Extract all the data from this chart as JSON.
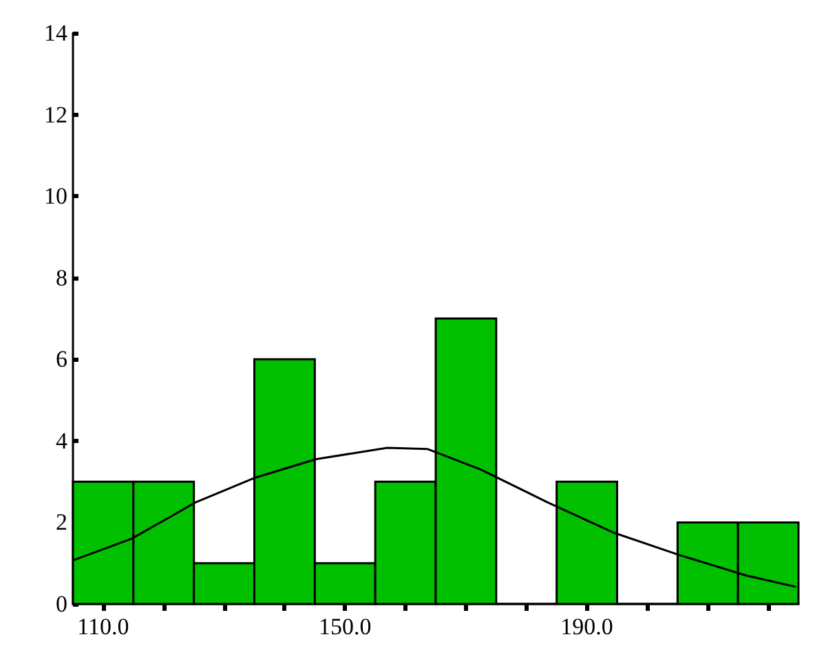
{
  "chart_data": {
    "type": "histogram",
    "bins": [
      105,
      115,
      125,
      135,
      145,
      155,
      165,
      175,
      185,
      195,
      205,
      215,
      225
    ],
    "values": [
      3,
      3,
      1,
      6,
      1,
      3,
      7,
      0,
      3,
      0,
      2,
      2
    ],
    "color": "#00c000",
    "series": [
      {
        "type": "line",
        "x": [
          105,
          114.7,
          125.4,
          135.2,
          145.2,
          157,
          163.6,
          172.4,
          183.4,
          194.4,
          205.3,
          216.3,
          224.6
        ],
        "values": [
          1.07,
          1.6,
          2.5,
          3.1,
          3.55,
          3.83,
          3.8,
          3.3,
          2.5,
          1.75,
          1.2,
          0.7,
          0.42
        ],
        "color": "#000000"
      }
    ],
    "xlim": [
      105,
      225
    ],
    "xticks": [
      {
        "value": 110,
        "label": "110.0"
      },
      {
        "value": 120,
        "label": null
      },
      {
        "value": 130,
        "label": null
      },
      {
        "value": 140,
        "label": null
      },
      {
        "value": 150,
        "label": "150.0"
      },
      {
        "value": 160,
        "label": null
      },
      {
        "value": 170,
        "label": null
      },
      {
        "value": 180,
        "label": null
      },
      {
        "value": 190,
        "label": "190.0"
      },
      {
        "value": 200,
        "label": null
      },
      {
        "value": 210,
        "label": null
      },
      {
        "value": 220,
        "label": null
      }
    ],
    "ylim": [
      0,
      14
    ],
    "yticks": [
      0,
      2,
      4,
      6,
      8,
      10,
      12,
      14
    ],
    "grid": false
  }
}
